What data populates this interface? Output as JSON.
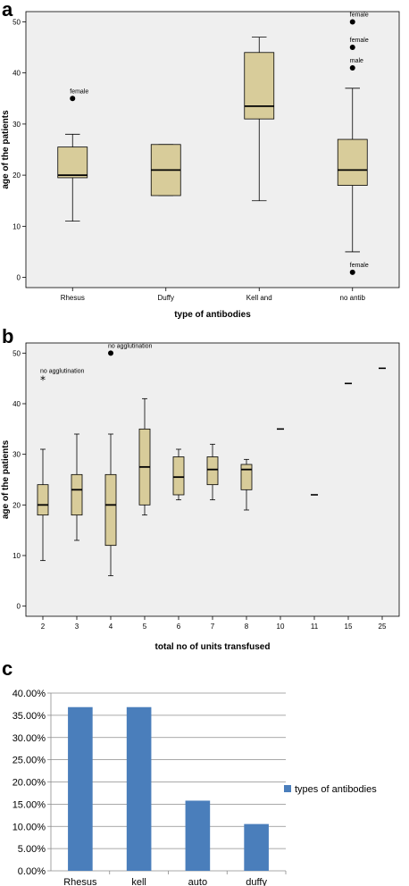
{
  "panels": {
    "a": "a",
    "b": "b",
    "c": "c"
  },
  "chart_data": [
    {
      "type": "box",
      "panel": "a",
      "xlabel": "type of antibodies",
      "ylabel": "age of the patients",
      "ylim": [
        -2,
        52
      ],
      "yticks": [
        0,
        10,
        20,
        30,
        40,
        50
      ],
      "background": "#efefef",
      "box_color": "#d8cc9a",
      "categories": [
        "Rhesus",
        "Duffy",
        "Kell and",
        "no antib"
      ],
      "boxes": [
        {
          "min": 11,
          "q1": 19.5,
          "median": 20,
          "q3": 25.5,
          "max": 28
        },
        {
          "min": 16,
          "q1": 16,
          "median": 21,
          "q3": 26,
          "max": 26
        },
        {
          "min": 15,
          "q1": 31,
          "median": 33.5,
          "q3": 44,
          "max": 47
        },
        {
          "min": 5,
          "q1": 18,
          "median": 21,
          "q3": 27,
          "max": 37
        }
      ],
      "outliers": [
        {
          "cat": 0,
          "y": 35,
          "label": "female",
          "marker": "dot"
        },
        {
          "cat": 3,
          "y": 50,
          "label": "female",
          "marker": "dot"
        },
        {
          "cat": 3,
          "y": 45,
          "label": "female",
          "marker": "dot"
        },
        {
          "cat": 3,
          "y": 41,
          "label": "male",
          "marker": "dot"
        },
        {
          "cat": 3,
          "y": 1,
          "label": "female",
          "marker": "dot"
        }
      ]
    },
    {
      "type": "box",
      "panel": "b",
      "xlabel": "total no of units transfused",
      "ylabel": "age of the patients",
      "ylim": [
        -2,
        52
      ],
      "yticks": [
        0,
        10,
        20,
        30,
        40,
        50
      ],
      "background": "#efefef",
      "box_color": "#d8cc9a",
      "categories": [
        "2",
        "3",
        "4",
        "5",
        "6",
        "7",
        "8",
        "10",
        "11",
        "15",
        "25"
      ],
      "boxes": [
        {
          "min": 9,
          "q1": 18,
          "median": 20,
          "q3": 24,
          "max": 31
        },
        {
          "min": 13,
          "q1": 18,
          "median": 23,
          "q3": 26,
          "max": 34
        },
        {
          "min": 6,
          "q1": 12,
          "median": 20,
          "q3": 26,
          "max": 34
        },
        {
          "min": 18,
          "q1": 20,
          "median": 27.5,
          "q3": 35,
          "max": 41
        },
        {
          "min": 21,
          "q1": 22,
          "median": 25.5,
          "q3": 29.5,
          "max": 31
        },
        {
          "min": 21,
          "q1": 24,
          "median": 27,
          "q3": 29.5,
          "max": 32
        },
        {
          "min": 19,
          "q1": 23,
          "median": 27,
          "q3": 28,
          "max": 29
        },
        {
          "min": 35,
          "q1": 35,
          "median": 35,
          "q3": 35,
          "max": 35
        },
        {
          "min": 22,
          "q1": 22,
          "median": 22,
          "q3": 22,
          "max": 22
        },
        {
          "min": 44,
          "q1": 44,
          "median": 44,
          "q3": 44,
          "max": 44
        },
        {
          "min": 47,
          "q1": 47,
          "median": 47,
          "q3": 47,
          "max": 47
        }
      ],
      "outliers": [
        {
          "cat": 0,
          "y": 45,
          "label": "no agglutination",
          "marker": "star"
        },
        {
          "cat": 2,
          "y": 50,
          "label": "no agglutination",
          "marker": "dot"
        }
      ]
    },
    {
      "type": "bar",
      "panel": "c",
      "categories": [
        "Rhesus",
        "kell",
        "auto",
        "duffy"
      ],
      "series": [
        {
          "name": "types of antibodies",
          "values": [
            36.84,
            36.84,
            15.79,
            10.53
          ],
          "color": "#4a7ebb"
        }
      ],
      "ylim": [
        0,
        40
      ],
      "yticks": [
        "0.00%",
        "5.00%",
        "10.00%",
        "15.00%",
        "20.00%",
        "25.00%",
        "30.00%",
        "35.00%",
        "40.00%"
      ],
      "grid": true,
      "legend": "right"
    }
  ]
}
